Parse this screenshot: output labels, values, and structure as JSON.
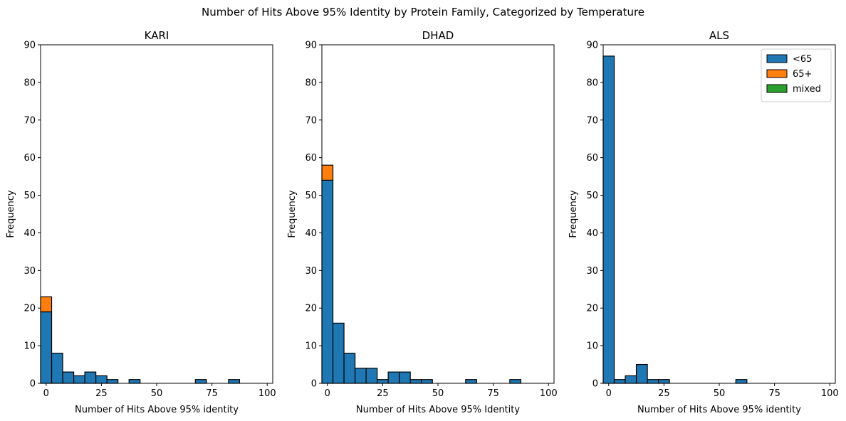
{
  "figure": {
    "suptitle": "Number of Hits Above 95% Identity by Protein Family, Categorized by Temperature"
  },
  "colors": {
    "<65": "#1f77b4",
    "65+": "#ff7f0e",
    "mixed": "#2ca02c",
    "edge": "#000000"
  },
  "legend": {
    "placement": "upper right (ALS panel)",
    "entries": [
      "<65",
      "65+",
      "mixed"
    ]
  },
  "chart_data": [
    {
      "type": "bar",
      "stacked": true,
      "title": "KARI",
      "xlabel": "Number of Hits Above 95% identity",
      "ylabel": "Frequency",
      "xlim": [
        -2.5,
        102.5
      ],
      "ylim": [
        0,
        90
      ],
      "xticks": [
        0,
        25,
        50,
        75,
        100
      ],
      "yticks": [
        0,
        10,
        20,
        30,
        40,
        50,
        60,
        70,
        80,
        90
      ],
      "bin_width": 5,
      "bin_starts": [
        -2.5,
        2.5,
        7.5,
        12.5,
        17.5,
        22.5,
        27.5,
        32.5,
        37.5,
        42.5,
        47.5,
        52.5,
        57.5,
        62.5,
        67.5,
        72.5,
        77.5,
        82.5,
        87.5,
        92.5
      ],
      "series": [
        {
          "name": "<65",
          "values": [
            19,
            8,
            3,
            2,
            3,
            2,
            1,
            0,
            1,
            0,
            0,
            0,
            0,
            0,
            1,
            0,
            0,
            1,
            0,
            0
          ]
        },
        {
          "name": "65+",
          "values": [
            4,
            0,
            0,
            0,
            0,
            0,
            0,
            0,
            0,
            0,
            0,
            0,
            0,
            0,
            0,
            0,
            0,
            0,
            0,
            0
          ]
        },
        {
          "name": "mixed",
          "values": [
            0,
            0,
            0,
            0,
            0,
            0,
            0,
            0,
            0,
            0,
            0,
            0,
            0,
            0,
            0,
            0,
            0,
            0,
            0,
            0
          ]
        }
      ]
    },
    {
      "type": "bar",
      "stacked": true,
      "title": "DHAD",
      "xlabel": "Number of Hits Above 95% Identity",
      "ylabel": "Frequency",
      "xlim": [
        -2.5,
        102.5
      ],
      "ylim": [
        0,
        90
      ],
      "xticks": [
        0,
        25,
        50,
        75,
        100
      ],
      "yticks": [
        0,
        10,
        20,
        30,
        40,
        50,
        60,
        70,
        80,
        90
      ],
      "bin_width": 5,
      "bin_starts": [
        -2.5,
        2.5,
        7.5,
        12.5,
        17.5,
        22.5,
        27.5,
        32.5,
        37.5,
        42.5,
        47.5,
        52.5,
        57.5,
        62.5,
        67.5,
        72.5,
        77.5,
        82.5,
        87.5,
        92.5
      ],
      "series": [
        {
          "name": "<65",
          "values": [
            54,
            16,
            8,
            4,
            4,
            1,
            3,
            3,
            1,
            1,
            0,
            0,
            0,
            1,
            0,
            0,
            0,
            1,
            0,
            0
          ]
        },
        {
          "name": "65+",
          "values": [
            4,
            0,
            0,
            0,
            0,
            0,
            0,
            0,
            0,
            0,
            0,
            0,
            0,
            0,
            0,
            0,
            0,
            0,
            0,
            0
          ]
        },
        {
          "name": "mixed",
          "values": [
            0,
            0,
            0,
            0,
            0,
            0,
            0,
            0,
            0,
            0,
            0,
            0,
            0,
            0,
            0,
            0,
            0,
            0,
            0,
            0
          ]
        }
      ]
    },
    {
      "type": "bar",
      "stacked": true,
      "title": "ALS",
      "xlabel": "Number of Hits Above 95% identity",
      "ylabel": "Frequency",
      "xlim": [
        -2.5,
        102.5
      ],
      "ylim": [
        0,
        90
      ],
      "xticks": [
        0,
        25,
        50,
        75,
        100
      ],
      "yticks": [
        0,
        10,
        20,
        30,
        40,
        50,
        60,
        70,
        80,
        90
      ],
      "bin_width": 5,
      "bin_starts": [
        -2.5,
        2.5,
        7.5,
        12.5,
        17.5,
        22.5,
        27.5,
        32.5,
        37.5,
        42.5,
        47.5,
        52.5,
        57.5,
        62.5,
        67.5,
        72.5,
        77.5,
        82.5,
        87.5,
        92.5
      ],
      "series": [
        {
          "name": "<65",
          "values": [
            87,
            1,
            2,
            5,
            1,
            1,
            0,
            0,
            0,
            0,
            0,
            0,
            1,
            0,
            0,
            0,
            0,
            0,
            0,
            0
          ]
        },
        {
          "name": "65+",
          "values": [
            0,
            0,
            0,
            0,
            0,
            0,
            0,
            0,
            0,
            0,
            0,
            0,
            0,
            0,
            0,
            0,
            0,
            0,
            0,
            0
          ]
        },
        {
          "name": "mixed",
          "values": [
            0,
            0,
            0,
            0,
            0,
            0,
            0,
            0,
            0,
            0,
            0,
            0,
            0,
            0,
            0,
            0,
            0,
            0,
            0,
            0
          ]
        }
      ]
    }
  ]
}
